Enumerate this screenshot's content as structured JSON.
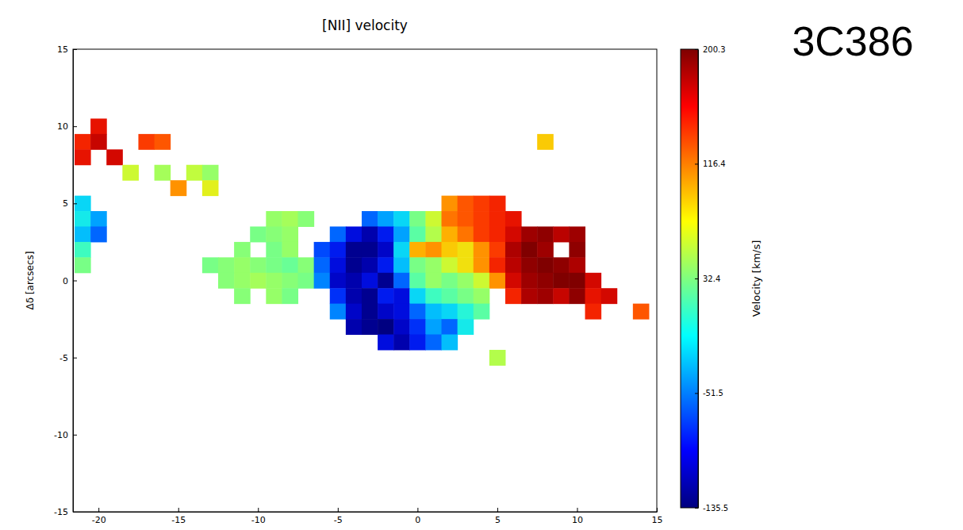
{
  "chart_data": {
    "type": "heatmap",
    "title": "[NII] velocity",
    "annotation": "3C386",
    "y_label": "Δδ [arcsecs]",
    "color": "jet",
    "xlim": [
      -21.6,
      15
    ],
    "xticks": [
      -20,
      -15,
      -10,
      -5,
      0,
      5,
      10,
      15
    ],
    "ylim": [
      -15,
      15
    ],
    "yticks": [
      -15,
      -10,
      -5,
      0,
      5,
      10,
      15
    ],
    "colorbar": {
      "label": "Velocity [km/s]",
      "range": [
        -135.5,
        200.3
      ],
      "ticks": [
        -135.5,
        -51.5,
        32.4,
        116.4,
        200.3
      ]
    },
    "cells": [
      [
        -20,
        10,
        160
      ],
      [
        -21,
        9,
        150
      ],
      [
        -20,
        9,
        175
      ],
      [
        -17,
        9,
        140
      ],
      [
        -16,
        9,
        130
      ],
      [
        8,
        9,
        90
      ],
      [
        -21,
        8,
        160
      ],
      [
        -19,
        8,
        170
      ],
      [
        -18,
        7,
        60
      ],
      [
        -16,
        7,
        45
      ],
      [
        -14,
        7,
        55
      ],
      [
        -13,
        7,
        40
      ],
      [
        -15,
        6,
        110
      ],
      [
        -13,
        6,
        70
      ],
      [
        -21,
        5,
        -20
      ],
      [
        2,
        5,
        110
      ],
      [
        3,
        5,
        130
      ],
      [
        4,
        5,
        140
      ],
      [
        5,
        5,
        150
      ],
      [
        -21,
        4,
        -10
      ],
      [
        -20,
        4,
        -40
      ],
      [
        -9,
        4,
        40
      ],
      [
        -8,
        4,
        45
      ],
      [
        -7,
        4,
        35
      ],
      [
        -3,
        4,
        -60
      ],
      [
        -2,
        4,
        -40
      ],
      [
        -1,
        4,
        -20
      ],
      [
        0,
        4,
        30
      ],
      [
        1,
        4,
        60
      ],
      [
        2,
        4,
        120
      ],
      [
        3,
        4,
        130
      ],
      [
        4,
        4,
        140
      ],
      [
        5,
        4,
        150
      ],
      [
        6,
        4,
        160
      ],
      [
        -21,
        3,
        -30
      ],
      [
        -20,
        3,
        -60
      ],
      [
        -10,
        3,
        30
      ],
      [
        -9,
        3,
        35
      ],
      [
        -8,
        3,
        40
      ],
      [
        -5,
        3,
        -60
      ],
      [
        -4,
        3,
        -100
      ],
      [
        -3,
        3,
        -120
      ],
      [
        -2,
        3,
        -90
      ],
      [
        -1,
        3,
        -40
      ],
      [
        0,
        3,
        20
      ],
      [
        1,
        3,
        50
      ],
      [
        2,
        3,
        100
      ],
      [
        3,
        3,
        120
      ],
      [
        4,
        3,
        140
      ],
      [
        5,
        3,
        150
      ],
      [
        6,
        3,
        170
      ],
      [
        7,
        3,
        190
      ],
      [
        8,
        3,
        195
      ],
      [
        9,
        3,
        180
      ],
      [
        10,
        3,
        190
      ],
      [
        -21,
        2,
        10
      ],
      [
        -11,
        2,
        35
      ],
      [
        -9,
        2,
        30
      ],
      [
        -8,
        2,
        40
      ],
      [
        -6,
        2,
        -70
      ],
      [
        -5,
        2,
        -90
      ],
      [
        -4,
        2,
        -130
      ],
      [
        -3,
        2,
        -130
      ],
      [
        -2,
        2,
        -110
      ],
      [
        -1,
        2,
        -20
      ],
      [
        0,
        2,
        100
      ],
      [
        1,
        2,
        110
      ],
      [
        2,
        2,
        90
      ],
      [
        3,
        2,
        80
      ],
      [
        4,
        2,
        110
      ],
      [
        5,
        2,
        140
      ],
      [
        6,
        2,
        185
      ],
      [
        7,
        2,
        200
      ],
      [
        8,
        2,
        190
      ],
      [
        10,
        2,
        195
      ],
      [
        -21,
        1,
        30
      ],
      [
        -13,
        1,
        30
      ],
      [
        -12,
        1,
        35
      ],
      [
        -11,
        1,
        40
      ],
      [
        -10,
        1,
        35
      ],
      [
        -9,
        1,
        30
      ],
      [
        -8,
        1,
        25
      ],
      [
        -7,
        1,
        35
      ],
      [
        -6,
        1,
        -60
      ],
      [
        -5,
        1,
        -100
      ],
      [
        -4,
        1,
        -130
      ],
      [
        -3,
        1,
        -120
      ],
      [
        -2,
        1,
        -90
      ],
      [
        -1,
        1,
        -30
      ],
      [
        0,
        1,
        30
      ],
      [
        1,
        1,
        40
      ],
      [
        2,
        1,
        60
      ],
      [
        3,
        1,
        80
      ],
      [
        4,
        1,
        110
      ],
      [
        5,
        1,
        150
      ],
      [
        6,
        1,
        180
      ],
      [
        7,
        1,
        195
      ],
      [
        8,
        1,
        200
      ],
      [
        9,
        1,
        195
      ],
      [
        10,
        1,
        185
      ],
      [
        -12,
        0,
        35
      ],
      [
        -11,
        0,
        40
      ],
      [
        -10,
        0,
        45
      ],
      [
        -9,
        0,
        40
      ],
      [
        -8,
        0,
        35
      ],
      [
        -7,
        0,
        30
      ],
      [
        -6,
        0,
        -50
      ],
      [
        -5,
        0,
        -110
      ],
      [
        -4,
        0,
        -120
      ],
      [
        -3,
        0,
        -100
      ],
      [
        -2,
        0,
        -130
      ],
      [
        -1,
        0,
        -60
      ],
      [
        0,
        0,
        20
      ],
      [
        1,
        0,
        40
      ],
      [
        2,
        0,
        30
      ],
      [
        3,
        0,
        40
      ],
      [
        4,
        0,
        60
      ],
      [
        5,
        0,
        110
      ],
      [
        6,
        0,
        170
      ],
      [
        7,
        0,
        190
      ],
      [
        8,
        0,
        195
      ],
      [
        9,
        0,
        200
      ],
      [
        10,
        0,
        200
      ],
      [
        11,
        0,
        170
      ],
      [
        -11,
        -1,
        35
      ],
      [
        -9,
        -1,
        40
      ],
      [
        -8,
        -1,
        30
      ],
      [
        -5,
        -1,
        -80
      ],
      [
        -4,
        -1,
        -120
      ],
      [
        -3,
        -1,
        -130
      ],
      [
        -2,
        -1,
        -90
      ],
      [
        -1,
        -1,
        -100
      ],
      [
        0,
        -1,
        -20
      ],
      [
        1,
        -1,
        10
      ],
      [
        2,
        -1,
        20
      ],
      [
        3,
        -1,
        30
      ],
      [
        4,
        -1,
        40
      ],
      [
        6,
        -1,
        150
      ],
      [
        7,
        -1,
        185
      ],
      [
        8,
        -1,
        190
      ],
      [
        9,
        -1,
        175
      ],
      [
        10,
        -1,
        195
      ],
      [
        11,
        -1,
        160
      ],
      [
        12,
        -1,
        170
      ],
      [
        -5,
        -2,
        -50
      ],
      [
        -4,
        -2,
        -110
      ],
      [
        -3,
        -2,
        -130
      ],
      [
        -2,
        -2,
        -110
      ],
      [
        -1,
        -2,
        -100
      ],
      [
        0,
        -2,
        -60
      ],
      [
        1,
        -2,
        -30
      ],
      [
        2,
        -2,
        -20
      ],
      [
        3,
        -2,
        0
      ],
      [
        4,
        -2,
        20
      ],
      [
        11,
        -2,
        150
      ],
      [
        14,
        -2,
        130
      ],
      [
        -4,
        -3,
        -120
      ],
      [
        -3,
        -3,
        -130
      ],
      [
        -2,
        -3,
        -135
      ],
      [
        -1,
        -3,
        -110
      ],
      [
        0,
        -3,
        -80
      ],
      [
        1,
        -3,
        -40
      ],
      [
        2,
        -3,
        -60
      ],
      [
        3,
        -3,
        -10
      ],
      [
        -2,
        -4,
        -100
      ],
      [
        -1,
        -4,
        -120
      ],
      [
        0,
        -4,
        -90
      ],
      [
        1,
        -4,
        -60
      ],
      [
        2,
        -4,
        -30
      ],
      [
        5,
        -5,
        50
      ]
    ]
  }
}
